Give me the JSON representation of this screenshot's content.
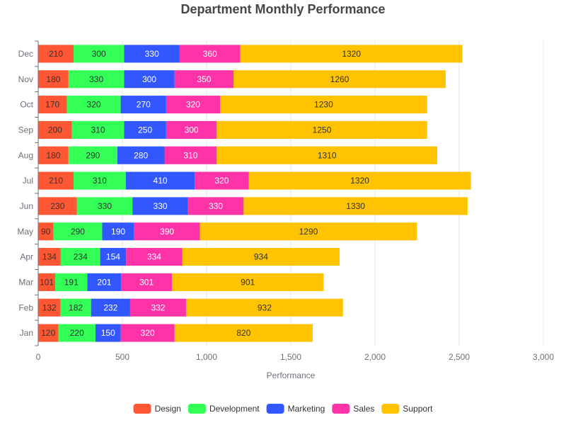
{
  "chart_data": {
    "type": "bar",
    "orientation": "horizontal",
    "stacked": true,
    "title": "Department Monthly Performance",
    "xlabel": "Performance",
    "ylabel": "",
    "xlim": [
      0,
      3000
    ],
    "x_ticks": [
      "0",
      "500",
      "1,000",
      "1,500",
      "2,000",
      "2,500",
      "3,000"
    ],
    "grid": true,
    "legend_position": "bottom",
    "categories": [
      "Jan",
      "Feb",
      "Mar",
      "Apr",
      "May",
      "Jun",
      "Jul",
      "Aug",
      "Sep",
      "Oct",
      "Nov",
      "Dec"
    ],
    "series": [
      {
        "name": "Design",
        "color": "#ff5733",
        "label_color": "#333333",
        "values": [
          120,
          132,
          101,
          134,
          90,
          230,
          210,
          180,
          200,
          170,
          180,
          210
        ]
      },
      {
        "name": "Development",
        "color": "#33ff57",
        "label_color": "#333333",
        "values": [
          220,
          182,
          191,
          234,
          290,
          330,
          310,
          290,
          310,
          320,
          330,
          300
        ]
      },
      {
        "name": "Marketing",
        "color": "#3357ff",
        "label_color": "#ffffff",
        "values": [
          150,
          232,
          201,
          154,
          190,
          330,
          410,
          280,
          250,
          270,
          300,
          330
        ]
      },
      {
        "name": "Sales",
        "color": "#ff33a8",
        "label_color": "#ffffff",
        "values": [
          320,
          332,
          301,
          334,
          390,
          330,
          320,
          310,
          300,
          320,
          350,
          360
        ]
      },
      {
        "name": "Support",
        "color": "#ffc300",
        "label_color": "#333333",
        "values": [
          820,
          932,
          901,
          934,
          1290,
          1330,
          1320,
          1310,
          1250,
          1230,
          1260,
          1320
        ]
      }
    ]
  }
}
